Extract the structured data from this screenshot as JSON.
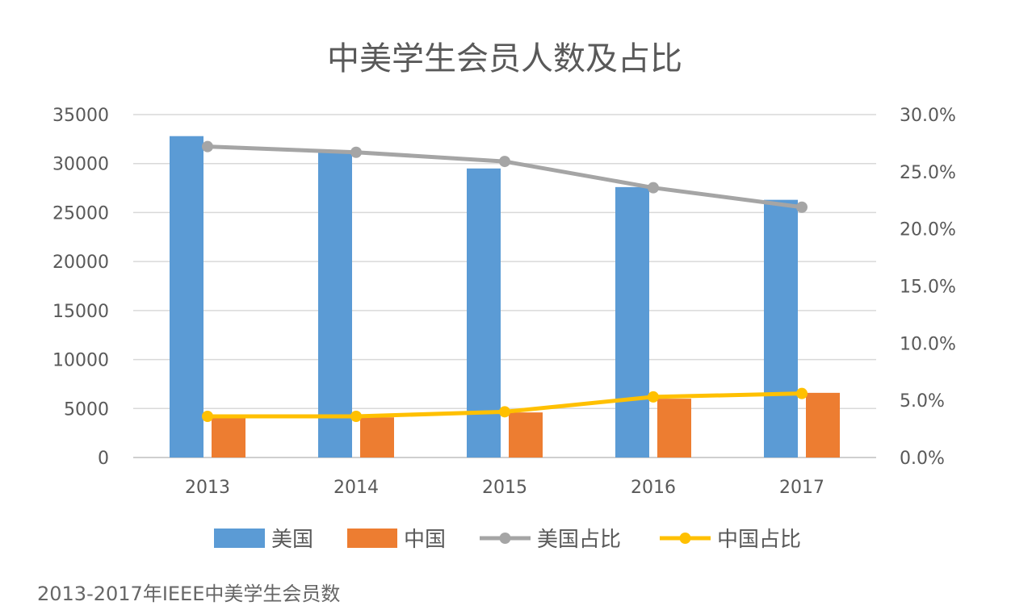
{
  "chart_data": {
    "type": "bar",
    "title": "中美学生会员人数及占比",
    "categories": [
      "2013",
      "2014",
      "2015",
      "2016",
      "2017"
    ],
    "series": [
      {
        "name": "美国",
        "type": "bar",
        "axis": "left",
        "color": "#5b9bd5",
        "values": [
          32800,
          31200,
          29500,
          27600,
          26300
        ]
      },
      {
        "name": "中国",
        "type": "bar",
        "axis": "left",
        "color": "#ed7d31",
        "values": [
          4200,
          4100,
          4600,
          6000,
          6600
        ]
      },
      {
        "name": "美国占比",
        "type": "line",
        "axis": "right",
        "color": "#a5a5a5",
        "values": [
          0.272,
          0.267,
          0.259,
          0.236,
          0.219
        ]
      },
      {
        "name": "中国占比",
        "type": "line",
        "axis": "right",
        "color": "#ffc000",
        "values": [
          0.036,
          0.036,
          0.04,
          0.053,
          0.056
        ]
      }
    ],
    "y_left": {
      "min": 0,
      "max": 35000,
      "ticks": [
        "0",
        "5000",
        "10000",
        "15000",
        "20000",
        "25000",
        "30000",
        "35000"
      ]
    },
    "y_right": {
      "min": 0,
      "max": 0.3,
      "ticks": [
        "0.0%",
        "5.0%",
        "10.0%",
        "15.0%",
        "20.0%",
        "25.0%",
        "30.0%"
      ]
    },
    "grid": true,
    "legend_position": "bottom"
  },
  "caption": "2013-2017年IEEE中美学生会员数"
}
